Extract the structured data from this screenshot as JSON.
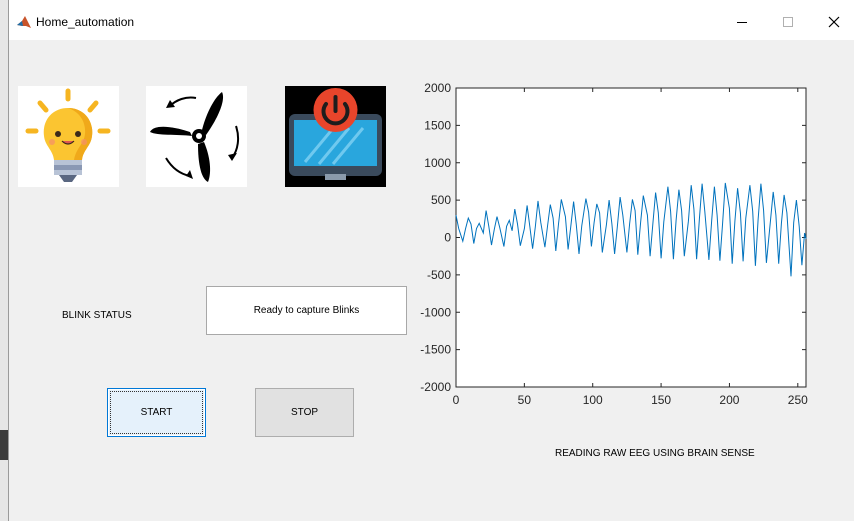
{
  "window": {
    "title": "Home_automation"
  },
  "icons": {
    "app": "matlab-icon",
    "bulb": "light-bulb-icon",
    "fan": "fan-icon",
    "tv": "tv-power-icon",
    "minimize": "minimize-icon",
    "maximize": "maximize-icon",
    "close": "close-icon"
  },
  "blink": {
    "label": "BLINK STATUS",
    "status_text": "Ready to capture Blinks"
  },
  "buttons": {
    "start": "START",
    "stop": "STOP"
  },
  "colors": {
    "line": "#0072bd",
    "button_focus": "#0078d7"
  },
  "chart_data": {
    "type": "line",
    "xlabel": "READING RAW EEG USING BRAIN SENSE",
    "xlim": [
      0,
      256
    ],
    "ylim": [
      -2000,
      2000
    ],
    "xticks": [
      0,
      50,
      100,
      150,
      200,
      250
    ],
    "yticks": [
      2000,
      1500,
      1000,
      500,
      0,
      -500,
      -1000,
      -1500,
      -2000
    ],
    "series": [
      {
        "x": [
          0,
          2,
          5,
          7,
          9,
          11,
          13,
          15,
          17,
          20,
          22,
          24,
          26,
          28,
          30,
          32,
          35,
          37,
          39,
          41,
          43,
          45,
          47,
          50,
          52,
          54,
          56,
          58,
          60,
          62,
          65,
          67,
          69,
          71,
          73,
          75,
          77,
          80,
          82,
          84,
          86,
          88,
          90,
          92,
          95,
          97,
          99,
          101,
          103,
          105,
          107,
          110,
          112,
          114,
          116,
          118,
          120,
          122,
          125,
          127,
          129,
          131,
          133,
          135,
          137,
          140,
          142,
          144,
          146,
          148,
          150,
          152,
          155,
          157,
          159,
          161,
          163,
          165,
          167,
          170,
          172,
          174,
          176,
          178,
          180,
          182,
          185,
          187,
          189,
          191,
          193,
          195,
          197,
          200,
          202,
          204,
          206,
          208,
          210,
          212,
          215,
          217,
          219,
          221,
          223,
          225,
          227,
          230,
          232,
          234,
          236,
          238,
          240,
          242,
          245,
          247,
          249,
          251,
          253,
          255,
          256
        ],
        "y": [
          300,
          120,
          -50,
          120,
          260,
          180,
          -80,
          120,
          190,
          60,
          360,
          150,
          -100,
          110,
          280,
          130,
          -120,
          150,
          230,
          90,
          380,
          180,
          -110,
          120,
          430,
          150,
          -150,
          140,
          490,
          200,
          -130,
          160,
          440,
          260,
          -180,
          180,
          510,
          280,
          -160,
          150,
          480,
          170,
          -220,
          160,
          520,
          340,
          -120,
          200,
          450,
          330,
          -200,
          170,
          500,
          180,
          -220,
          140,
          540,
          300,
          -200,
          180,
          510,
          360,
          -230,
          200,
          560,
          300,
          -250,
          190,
          600,
          330,
          -280,
          210,
          680,
          350,
          -290,
          230,
          640,
          360,
          -250,
          220,
          700,
          380,
          -290,
          250,
          720,
          350,
          -300,
          230,
          680,
          300,
          -310,
          190,
          730,
          390,
          -350,
          220,
          660,
          330,
          -320,
          260,
          700,
          350,
          -380,
          240,
          720,
          360,
          -340,
          230,
          610,
          300,
          -350,
          190,
          570,
          330,
          -520,
          200,
          500,
          150,
          -370,
          60,
          -20
        ]
      }
    ]
  }
}
